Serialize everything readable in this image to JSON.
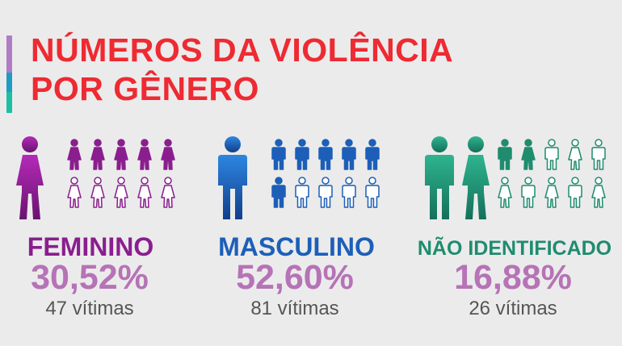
{
  "title": {
    "line1": "NÚMEROS DA VIOLÊNCIA",
    "line2": "POR GÊNERO"
  },
  "colors": {
    "title": "#ee2a32",
    "bar": [
      "#b07cc6",
      "#1f9cc4",
      "#1bbfa3"
    ],
    "female": "#8a1e8e",
    "male": "#1d5fb8",
    "unidentified": "#1f8c6e",
    "percent": "#b673b6",
    "count": "#555555"
  },
  "groups": [
    {
      "id": "feminino",
      "label": "FEMININO",
      "percent": "30,52%",
      "count": "47 vítimas",
      "filled": 5,
      "icon": "female"
    },
    {
      "id": "masculino",
      "label": "MASCULINO",
      "percent": "52,60%",
      "count": "81 vítimas",
      "filled": 6,
      "icon": "male"
    },
    {
      "id": "nao-identificado",
      "label": "NÃO IDENTIFICADO",
      "percent": "16,88%",
      "count": "26 vítimas",
      "filled": 2,
      "icon": "mixed"
    }
  ]
}
